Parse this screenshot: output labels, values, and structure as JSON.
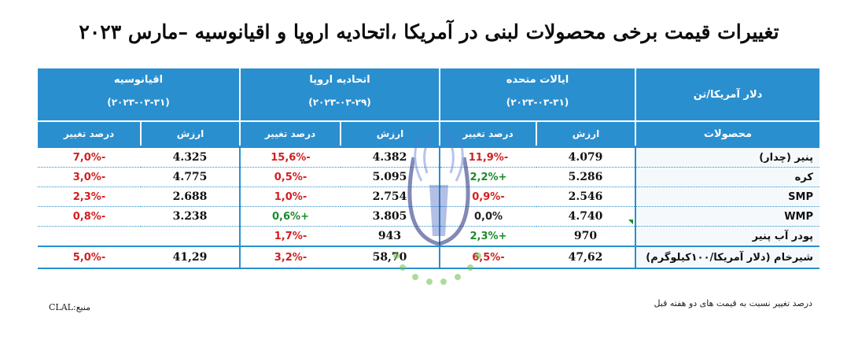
{
  "title": "تغییرات قیمت برخی محصولات لبنی در آمریکا ،اتحادیه اروپا و اقیانوسیه –مارس ۲۰۲۳",
  "table": {
    "corner_label": "دلار آمریکا/تن",
    "products_label": "محصولات",
    "groups": [
      {
        "name": "ایالات متحده",
        "date": "(۲۰۲۳-۰۳-۳۱)"
      },
      {
        "name": "اتحادیه اروپا",
        "date": "(۲۰۲۳-۰۳-۲۹)"
      },
      {
        "name": "اقیانوسیه",
        "date": "(۲۰۲۳-۰۳-۳۱)"
      }
    ],
    "value_label": "ارزش",
    "change_label": "درصد تغییر",
    "rows": [
      {
        "product": "پنیر (چدار)",
        "us_val": "4.079",
        "us_pct": "-11,9%",
        "eu_val": "4.382",
        "eu_pct": "-15,6%",
        "oc_val": "4.325",
        "oc_pct": "-7,0%"
      },
      {
        "product": "کره",
        "us_val": "5.286",
        "us_pct": "+2,2%",
        "eu_val": "5.095",
        "eu_pct": "-0,5%",
        "oc_val": "4.775",
        "oc_pct": "-3,0%"
      },
      {
        "product": "SMP",
        "us_val": "2.546",
        "us_pct": "-0,9%",
        "eu_val": "2.754",
        "eu_pct": "-1,0%",
        "oc_val": "2.688",
        "oc_pct": "-2,3%"
      },
      {
        "product": "WMP",
        "us_val": "4.740",
        "us_pct": "0,0%",
        "eu_val": "3.805",
        "eu_pct": "+0,6%",
        "oc_val": "3.238",
        "oc_pct": "-0,8%"
      },
      {
        "product": "پودر آب پنیر",
        "us_val": "970",
        "us_pct": "+2,3%",
        "eu_val": "943",
        "eu_pct": "-1,7%",
        "oc_val": "",
        "oc_pct": ""
      },
      {
        "product": "شیرخام (دلار آمریکا/۱۰۰کیلوگرم)",
        "us_val": "47,62",
        "us_pct": "-6,5%",
        "eu_val": "58,70",
        "eu_pct": "-3,2%",
        "oc_val": "41,29",
        "oc_pct": "-5,0%"
      }
    ]
  },
  "footnote": "درصد تغییر نسبت به قیمت های دو هفته قبل",
  "source": "منبع:CLAL",
  "colors": {
    "header_bg": "#2a8fcf",
    "negative": "#d21f1f",
    "positive": "#1a8a2a"
  }
}
